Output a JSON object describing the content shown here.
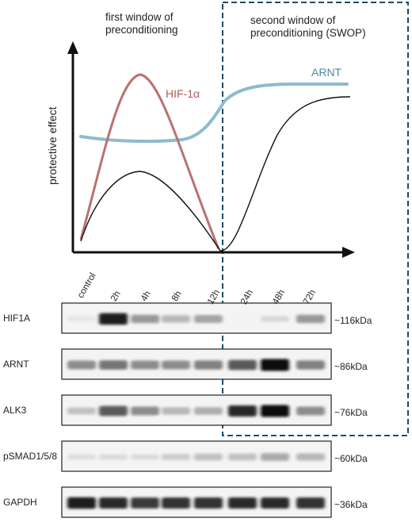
{
  "diagram": {
    "windows": {
      "first_line1": "first window of",
      "first_line2": "preconditioning",
      "second_line1": "second window of",
      "second_line2": "preconditioning (SWOP)"
    },
    "y_axis_label": "protective effect",
    "curve_labels": {
      "hif": "HIF-1α",
      "arnt": "ARNT"
    },
    "colors": {
      "hif": "#b97270",
      "arnt": "#8dbccc",
      "black": "#111111",
      "dashed_box": "#1f4c6b"
    }
  },
  "blot": {
    "timepoints": [
      "control",
      "2h",
      "4h",
      "8h",
      "12h",
      "24h",
      "48h",
      "72h"
    ],
    "rows": [
      {
        "protein": "HIF1A",
        "size": "~116kDa",
        "intensity": [
          0.03,
          0.95,
          0.5,
          0.35,
          0.45,
          0.0,
          0.15,
          0.5
        ]
      },
      {
        "protein": "ARNT",
        "size": "~86kDa",
        "intensity": [
          0.55,
          0.65,
          0.55,
          0.55,
          0.6,
          0.75,
          1.0,
          0.6
        ]
      },
      {
        "protein": "ALK3",
        "size": "~76kDa",
        "intensity": [
          0.3,
          0.75,
          0.55,
          0.35,
          0.4,
          0.9,
          1.0,
          0.55
        ]
      },
      {
        "protein": "pSMAD1/5/8",
        "size": "~60kDa",
        "intensity": [
          0.1,
          0.12,
          0.12,
          0.22,
          0.3,
          0.3,
          0.42,
          0.35
        ]
      },
      {
        "protein": "GAPDH",
        "size": "~36kDa",
        "intensity": [
          0.95,
          0.9,
          0.85,
          0.88,
          0.88,
          0.9,
          0.9,
          0.88
        ]
      }
    ]
  }
}
